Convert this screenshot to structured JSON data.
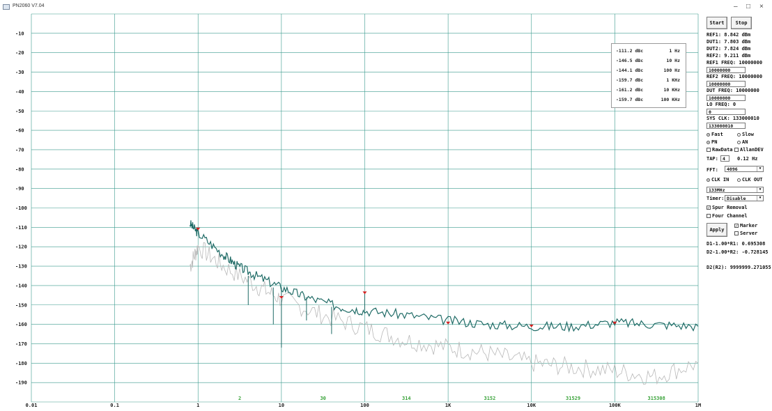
{
  "window": {
    "title": "PN2060 V7.04",
    "min": "–",
    "max": "□",
    "close": "×"
  },
  "controls": {
    "start": "Start",
    "stop": "Stop",
    "ref1": "REF1: 8.842 dBm",
    "dut1": "DUT1: 7.803 dBm",
    "dut2": "DUT2: 7.824 dBm",
    "ref2": "REF2: 9.211 dBm",
    "ref1_freq_label": "REF1 FREQ: 10000000",
    "ref1_freq_value": "10000000",
    "ref2_freq_label": "REF2 FREQ: 10000000",
    "ref2_freq_value": "10000000",
    "dut_freq_label": "DUT FREQ: 10000000",
    "dut_freq_value": "10000000",
    "lo_freq_label": "LO FREQ: 0",
    "lo_freq_value": "0",
    "sys_clk_label": "SYS CLK: 133000010",
    "sys_clk_value": "133000010",
    "fast": "Fast",
    "slow": "Slow",
    "pn": "PN",
    "an": "AN",
    "rawdata": "RawData",
    "allandev": "AllanDEV",
    "tap_label": "TAP:",
    "tap_value": "4",
    "tap_hz": "0.12 Hz",
    "fft_label": "FFT:",
    "fft_value": "4096",
    "clk_in": "CLK IN",
    "clk_out": "CLK OUT",
    "clk_select": "133MHz",
    "timer_label": "Timer:",
    "timer_value": "Disable",
    "spur_removal": "Spur Removal",
    "four_channel": "Four Channel",
    "apply": "Apply",
    "marker": "Marker",
    "server": "Server",
    "d1": "D1-1.00*R1: 0.695308",
    "d2": "D2-1.00*R2: -0.728145",
    "d2r2": "D2(R2): 9999999.271055"
  },
  "marker_table": [
    {
      "dbc": "-111.2 dBc",
      "freq": "1 Hz"
    },
    {
      "dbc": "-146.5 dBc",
      "freq": "10 Hz"
    },
    {
      "dbc": "-144.1 dBc",
      "freq": "100 Hz"
    },
    {
      "dbc": "-159.7 dBc",
      "freq": "1 KHz"
    },
    {
      "dbc": "-161.2 dBc",
      "freq": "10 KHz"
    },
    {
      "dbc": "-159.7 dBc",
      "freq": "100 KHz"
    }
  ],
  "chart_data": {
    "type": "line",
    "x_scale": "log",
    "xlim": [
      0.01,
      1000000
    ],
    "ylim": [
      -200,
      0
    ],
    "grid": true,
    "x_tick_labels": [
      "0.01",
      "0.1",
      "1",
      "10",
      "100",
      "1K",
      "10K",
      "100K",
      "1M"
    ],
    "y_tick_labels": [
      "-10",
      "-20",
      "-30",
      "-40",
      "-50",
      "-60",
      "-70",
      "-80",
      "-90",
      "-100",
      "-110",
      "-120",
      "-130",
      "-140",
      "-150",
      "-160",
      "-170",
      "-180",
      "-190"
    ],
    "bin_labels": [
      "2",
      "30",
      "314",
      "3152",
      "31529",
      "315308"
    ],
    "bin_label_color": "#3aa33a",
    "series": [
      {
        "color": "#1f6b66",
        "points": [
          [
            0.8,
            -108
          ],
          [
            1,
            -113
          ],
          [
            2,
            -124
          ],
          [
            3,
            -130
          ],
          [
            5,
            -135
          ],
          [
            10,
            -141
          ],
          [
            20,
            -146
          ],
          [
            50,
            -151
          ],
          [
            100,
            -153
          ],
          [
            300,
            -155
          ],
          [
            1000,
            -158
          ],
          [
            3000,
            -160
          ],
          [
            10000,
            -161
          ],
          [
            30000,
            -161
          ],
          [
            100000,
            -159
          ],
          [
            300000,
            -160
          ],
          [
            1000000,
            -161
          ]
        ]
      },
      {
        "color": "#b8b8b8",
        "points": [
          [
            0.8,
            -130
          ],
          [
            1,
            -120
          ],
          [
            2,
            -130
          ],
          [
            5,
            -140
          ],
          [
            10,
            -147
          ],
          [
            30,
            -155
          ],
          [
            100,
            -162
          ],
          [
            300,
            -168
          ],
          [
            1000,
            -172
          ],
          [
            3000,
            -175
          ],
          [
            10000,
            -180
          ],
          [
            30000,
            -182
          ],
          [
            100000,
            -184
          ],
          [
            300000,
            -187
          ],
          [
            1000000,
            -180
          ]
        ]
      }
    ],
    "markers": [
      [
        1,
        -111.2
      ],
      [
        10,
        -146.5
      ],
      [
        100,
        -144.1
      ],
      [
        1000,
        -159.7
      ],
      [
        10000,
        -161.2
      ],
      [
        100000,
        -159.7
      ]
    ],
    "marker_color": "#d42020",
    "grid_color": "#3a9a8e"
  }
}
